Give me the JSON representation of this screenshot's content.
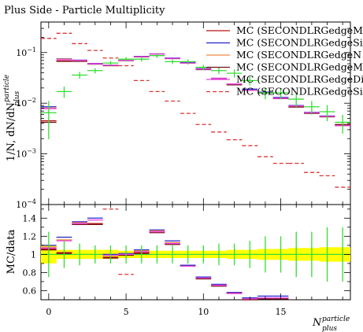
{
  "chart_data": {
    "type": "scatter",
    "title": "Plus Side - Particle Multiplicity",
    "xlabel": "N",
    "xlabel_sup": "particle",
    "xlabel_sub": "plus",
    "ylabel_main": "1/N, dN/dN",
    "ylabel_sup": "particle",
    "ylabel_sub": "plus",
    "ylabel_ratio": "MC/data",
    "xlim": [
      -0.5,
      19.5
    ],
    "ylim_main": [
      0.0001,
      0.4
    ],
    "yscale_main": "log",
    "ylim_ratio": [
      0.5,
      1.55
    ],
    "xticks": [
      0,
      5,
      10,
      15
    ],
    "yticks_main": [
      {
        "v": 0.1,
        "base": "10",
        "exp": "−1"
      },
      {
        "v": 0.01,
        "base": "10",
        "exp": "−2"
      },
      {
        "v": 0.001,
        "base": "10",
        "exp": "−3"
      },
      {
        "v": 0.0001,
        "base": "10",
        "exp": "−4"
      }
    ],
    "yticks_ratio": [
      "0.6",
      "0.8",
      "1",
      "1.2",
      "1.4"
    ],
    "yticks_ratio_values": [
      0.6,
      0.8,
      1.0,
      1.2,
      1.4
    ],
    "legend_placement": "top-right",
    "x": [
      0,
      1,
      2,
      3,
      4,
      5,
      6,
      7,
      8,
      9,
      10,
      11,
      12,
      13,
      14,
      15,
      16,
      17,
      18,
      19
    ],
    "data": {
      "name": "",
      "color": "#33dd33",
      "values": [
        0.0065,
        0.017,
        0.036,
        0.044,
        0.062,
        0.074,
        0.074,
        0.087,
        0.066,
        0.066,
        0.051,
        0.044,
        0.039,
        0.028,
        0.016,
        0.016,
        0.012,
        0.0085,
        0.0068,
        0.0042
      ],
      "err_rel": [
        0.7,
        0.25,
        0.15,
        0.12,
        0.1,
        0.1,
        0.1,
        0.1,
        0.1,
        0.12,
        0.12,
        0.15,
        0.18,
        0.2,
        0.25,
        0.25,
        0.3,
        0.3,
        0.35,
        0.4
      ]
    },
    "data_ratio_errors": [
      0.25,
      0.15,
      0.12,
      0.1,
      0.1,
      0.1,
      0.1,
      0.1,
      0.1,
      0.1,
      0.1,
      0.12,
      0.12,
      0.15,
      0.2,
      0.2,
      0.25,
      0.25,
      0.3,
      0.3
    ],
    "series": [
      {
        "name": "MC (SECONDLRGedgeM",
        "color": "#bb1111",
        "dash": "",
        "values": [
          0.0045,
          0.068,
          0.068,
          0.06,
          0.056,
          0.07,
          0.083,
          0.094,
          0.077,
          0.063,
          0.047,
          0.03,
          0.024,
          0.018,
          0.016,
          0.0125,
          0.0085,
          0.0064,
          0.0055,
          0.0038
        ],
        "ratio": [
          1.06,
          1.02,
          1.34,
          1.34,
          0.97,
          1.0,
          1.02,
          1.25,
          1.12,
          0.88,
          0.74,
          0.66,
          0.58,
          0.5,
          0.52,
          0.52,
          null,
          null,
          null,
          null
        ]
      },
      {
        "name": "MC (SECONDLRGedgeSi",
        "color": "#2222cc",
        "dash": "",
        "values": [
          0.0085,
          0.075,
          0.071,
          0.061,
          0.056,
          0.07,
          0.084,
          0.094,
          0.078,
          0.063,
          0.048,
          0.031,
          0.024,
          0.019,
          0.0165,
          0.013,
          0.009,
          0.0066,
          0.0056,
          0.0037
        ],
        "ratio": [
          1.1,
          1.19,
          1.36,
          1.4,
          1.0,
          1.01,
          1.05,
          1.27,
          1.15,
          0.88,
          0.75,
          0.67,
          0.58,
          0.52,
          0.54,
          0.54,
          null,
          null,
          null,
          null
        ]
      },
      {
        "name": "MC (SECONDLRGedgeN",
        "color": "#ee8844",
        "dash": "",
        "values": [
          0.008,
          0.074,
          0.07,
          0.06,
          0.055,
          0.07,
          0.083,
          0.093,
          0.077,
          0.062,
          0.047,
          0.031,
          0.024,
          0.018,
          0.016,
          0.0125,
          0.0088,
          0.0065,
          0.0055,
          0.0036
        ],
        "ratio": [
          1.08,
          1.16,
          1.35,
          1.38,
          0.99,
          1.0,
          1.04,
          1.26,
          1.13,
          0.87,
          0.74,
          0.66,
          0.57,
          0.51,
          0.52,
          0.52,
          null,
          null,
          null,
          null
        ]
      },
      {
        "name": "MC (SECONDLRGedgeM",
        "color": "#771111",
        "dash": "",
        "values": [
          0.0042,
          0.067,
          0.067,
          0.059,
          0.055,
          0.069,
          0.082,
          0.093,
          0.076,
          0.062,
          0.046,
          0.03,
          0.023,
          0.018,
          0.0158,
          0.0123,
          0.0084,
          0.0063,
          0.0054,
          0.0037
        ],
        "ratio": [
          1.05,
          1.01,
          1.33,
          1.33,
          0.96,
          0.99,
          1.01,
          1.24,
          1.11,
          0.87,
          0.73,
          0.65,
          0.57,
          0.5,
          0.51,
          0.51,
          null,
          null,
          null,
          null
        ]
      },
      {
        "name": "MC (SECONDLRGedgeDi",
        "color": "#ee44ee",
        "dash": "",
        "values": [
          0.0078,
          0.072,
          0.07,
          0.06,
          0.056,
          0.07,
          0.083,
          0.093,
          0.077,
          0.062,
          0.047,
          0.031,
          0.024,
          0.018,
          0.016,
          0.0125,
          0.0088,
          0.0065,
          0.0055,
          0.0036
        ],
        "ratio": [
          1.07,
          1.15,
          1.34,
          1.38,
          0.99,
          1.0,
          1.03,
          1.25,
          1.12,
          0.87,
          0.74,
          0.66,
          0.57,
          0.51,
          0.52,
          0.52,
          null,
          null,
          null,
          null
        ]
      },
      {
        "name": "MC (SECONDLRGedgeSi",
        "color": "#dd3333",
        "dash": "5,3",
        "values": [
          0.19,
          0.24,
          0.15,
          0.11,
          0.078,
          0.055,
          0.028,
          0.017,
          0.011,
          0.0063,
          0.0038,
          0.0027,
          0.0019,
          0.00145,
          0.00088,
          0.00065,
          0.00065,
          0.00043,
          0.00037,
          0.00022
        ],
        "ratio": [
          null,
          null,
          null,
          null,
          1.5,
          0.78,
          null,
          null,
          null,
          null,
          null,
          null,
          null,
          null,
          null,
          null,
          null,
          null,
          null,
          null
        ]
      }
    ],
    "band": {
      "color": "#ffff00",
      "half_width": [
        0.1,
        0.05,
        0.05,
        0.05,
        0.05,
        0.04,
        0.04,
        0.04,
        0.04,
        0.04,
        0.04,
        0.04,
        0.05,
        0.05,
        0.06,
        0.06,
        0.07,
        0.07,
        0.08,
        0.08
      ]
    }
  }
}
